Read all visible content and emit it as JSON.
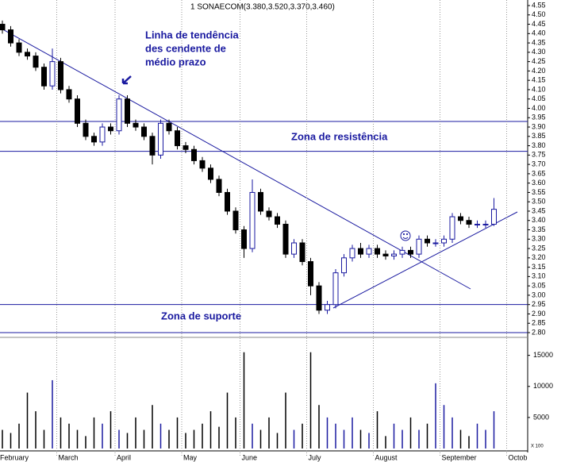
{
  "chart_data": {
    "type": "candlestick",
    "title": "1 SONAECOM(3.380,3.520,3.370,3.460)",
    "annotations": {
      "trend": [
        "Linha de tendência",
        "des cendente de",
        "médio prazo"
      ],
      "resistance": "Zona de resistência",
      "support": "Zona de suporte"
    },
    "categories": [
      "February",
      null,
      null,
      null,
      null,
      null,
      null,
      "March",
      null,
      null,
      null,
      null,
      null,
      null,
      "April",
      null,
      null,
      null,
      null,
      null,
      null,
      null,
      "May",
      null,
      null,
      null,
      null,
      null,
      null,
      "June",
      null,
      null,
      null,
      null,
      null,
      null,
      null,
      "July",
      null,
      null,
      null,
      null,
      null,
      null,
      null,
      "August",
      null,
      null,
      null,
      null,
      null,
      null,
      null,
      "September",
      null,
      null,
      null,
      null,
      null,
      null,
      null,
      "Octob"
    ],
    "open": [
      4.45,
      4.42,
      4.35,
      4.3,
      4.28,
      4.22,
      4.12,
      4.25,
      4.1,
      4.05,
      3.92,
      3.85,
      3.82,
      3.9,
      3.88,
      4.05,
      3.92,
      3.9,
      3.85,
      3.75,
      3.92,
      3.88,
      3.8,
      3.78,
      3.72,
      3.68,
      3.62,
      3.55,
      3.45,
      3.35,
      3.25,
      3.55,
      3.45,
      3.42,
      3.38,
      3.22,
      3.28,
      3.18,
      3.05,
      2.92,
      2.95,
      3.12,
      3.2,
      3.25,
      3.22,
      3.25,
      3.22,
      3.21,
      3.22,
      3.24,
      3.22,
      3.3,
      3.28,
      3.28,
      3.3,
      3.42,
      3.4,
      3.38,
      3.38,
      3.38,
      null,
      null
    ],
    "high": [
      4.47,
      4.44,
      4.37,
      4.32,
      4.3,
      4.24,
      4.32,
      4.27,
      4.12,
      4.07,
      3.94,
      3.87,
      3.92,
      3.92,
      4.07,
      4.07,
      3.94,
      3.92,
      3.87,
      3.94,
      3.94,
      3.9,
      3.82,
      3.8,
      3.74,
      3.7,
      3.64,
      3.57,
      3.47,
      3.37,
      3.62,
      3.57,
      3.47,
      3.44,
      3.4,
      3.3,
      3.3,
      3.2,
      3.07,
      2.97,
      3.14,
      3.22,
      3.27,
      3.28,
      3.27,
      3.27,
      3.24,
      3.24,
      3.26,
      3.26,
      3.32,
      3.32,
      3.3,
      3.32,
      3.44,
      3.44,
      3.42,
      3.4,
      3.4,
      3.52,
      null,
      null
    ],
    "low": [
      4.4,
      4.33,
      4.28,
      4.26,
      4.2,
      4.1,
      4.1,
      4.08,
      4.03,
      3.9,
      3.83,
      3.8,
      3.8,
      3.86,
      3.86,
      3.9,
      3.88,
      3.83,
      3.7,
      3.73,
      3.86,
      3.78,
      3.76,
      3.7,
      3.66,
      3.6,
      3.53,
      3.43,
      3.33,
      3.2,
      3.23,
      3.43,
      3.4,
      3.36,
      3.2,
      3.2,
      3.16,
      3.0,
      2.9,
      2.9,
      2.93,
      3.1,
      3.18,
      3.2,
      3.2,
      3.2,
      3.19,
      3.19,
      3.2,
      3.2,
      3.2,
      3.26,
      3.26,
      3.26,
      3.28,
      3.38,
      3.36,
      3.36,
      3.36,
      3.37,
      null,
      null
    ],
    "close": [
      4.42,
      4.35,
      4.3,
      4.28,
      4.22,
      4.12,
      4.25,
      4.1,
      4.05,
      3.92,
      3.85,
      3.82,
      3.9,
      3.88,
      4.05,
      3.92,
      3.9,
      3.85,
      3.75,
      3.92,
      3.88,
      3.8,
      3.78,
      3.72,
      3.68,
      3.62,
      3.55,
      3.45,
      3.35,
      3.25,
      3.55,
      3.45,
      3.42,
      3.38,
      3.22,
      3.28,
      3.18,
      3.05,
      2.92,
      2.95,
      3.12,
      3.2,
      3.25,
      3.22,
      3.25,
      3.22,
      3.21,
      3.22,
      3.24,
      3.22,
      3.3,
      3.28,
      3.28,
      3.3,
      3.42,
      3.4,
      3.38,
      3.38,
      3.38,
      3.46,
      null,
      null
    ],
    "volume": [
      3000,
      2500,
      4000,
      9000,
      6000,
      3000,
      11000,
      5000,
      4000,
      3000,
      2000,
      5000,
      4000,
      6000,
      3000,
      2500,
      5000,
      3000,
      7000,
      4000,
      3000,
      5000,
      2500,
      3000,
      4000,
      6000,
      3500,
      9000,
      5000,
      15500,
      4000,
      3000,
      5000,
      2500,
      9000,
      3000,
      4000,
      15500,
      7000,
      5000,
      4000,
      3000,
      5000,
      3000,
      2500,
      6000,
      2000,
      4000,
      3000,
      5000,
      3000,
      4000,
      10500,
      7000,
      5000,
      3000,
      2000,
      4000,
      3000,
      6000,
      null,
      null
    ],
    "up_color": "#1a1aa0",
    "down_color": "#000000",
    "resistance_zone": [
      3.77,
      3.93
    ],
    "support_zone": [
      2.8,
      2.95
    ],
    "ylim": [
      2.8,
      4.55
    ],
    "yticks": [
      {
        "value": 2.8,
        "label": "2.80"
      },
      {
        "value": 2.85,
        "label": "2.85"
      },
      {
        "value": 2.9,
        "label": "2.90"
      },
      {
        "value": 2.95,
        "label": "2.95"
      },
      {
        "value": 3.0,
        "label": "3.00"
      },
      {
        "value": 3.05,
        "label": "3.05"
      },
      {
        "value": 3.1,
        "label": "3.10"
      },
      {
        "value": 3.15,
        "label": "3.15"
      },
      {
        "value": 3.2,
        "label": "3.20"
      },
      {
        "value": 3.25,
        "label": "3.25"
      },
      {
        "value": 3.3,
        "label": "3.30"
      },
      {
        "value": 3.35,
        "label": "3.35"
      },
      {
        "value": 3.4,
        "label": "3.40"
      },
      {
        "value": 3.45,
        "label": "3.45"
      },
      {
        "value": 3.5,
        "label": "3.50"
      },
      {
        "value": 3.55,
        "label": "3.55"
      },
      {
        "value": 3.6,
        "label": "3.60"
      },
      {
        "value": 3.65,
        "label": "3.65"
      },
      {
        "value": 3.7,
        "label": "3.70"
      },
      {
        "value": 3.75,
        "label": "3.75"
      },
      {
        "value": 3.8,
        "label": "3.80"
      },
      {
        "value": 3.85,
        "label": "3.85"
      },
      {
        "value": 3.9,
        "label": "3.90"
      },
      {
        "value": 3.95,
        "label": "3.95"
      },
      {
        "value": 4.0,
        "label": "4.00"
      },
      {
        "value": 4.05,
        "label": "4.05"
      },
      {
        "value": 4.1,
        "label": "4.10"
      },
      {
        "value": 4.15,
        "label": "4.15"
      },
      {
        "value": 4.2,
        "label": "4.20"
      },
      {
        "value": 4.25,
        "label": "4.25"
      },
      {
        "value": 4.3,
        "label": "4.30"
      },
      {
        "value": 4.35,
        "label": "4.35"
      },
      {
        "value": 4.4,
        "label": "4.40"
      },
      {
        "value": 4.45,
        "label": "4.45"
      },
      {
        "value": 4.5,
        "label": "4.50"
      },
      {
        "value": 4.55,
        "label": "4.55"
      }
    ],
    "volume_ylim": [
      0,
      17000
    ],
    "volume_yticks": [
      5000,
      10000,
      15000
    ],
    "volume_unit_label": "X 100"
  }
}
